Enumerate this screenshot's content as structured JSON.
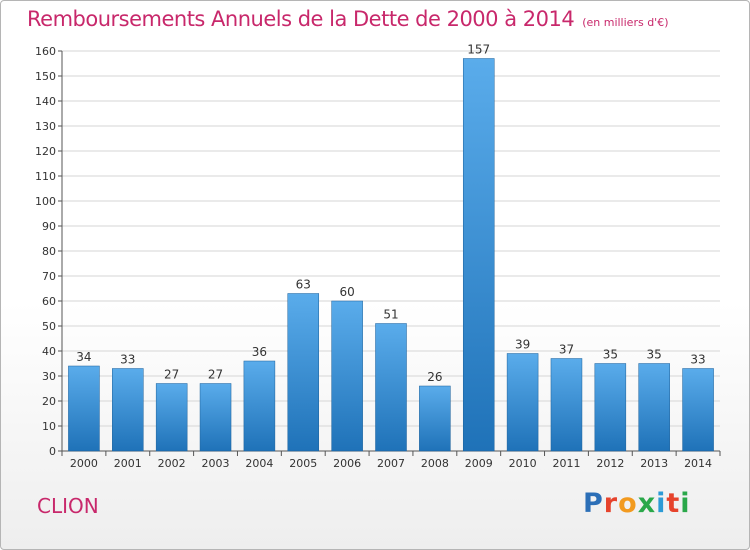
{
  "header": {
    "title": "Remboursements Annuels de la Dette de 2000 à 2014",
    "unit_note": "(en milliers d'€)"
  },
  "footer": {
    "place_name": "CLION",
    "logo_text": "Proxiti"
  },
  "colors": {
    "title": "#c8286b",
    "bar_top": "#5aaceb",
    "bar_bottom": "#1f72b8",
    "grid": "#d6d6d6"
  },
  "chart_data": {
    "type": "bar",
    "categories": [
      "2000",
      "2001",
      "2002",
      "2003",
      "2004",
      "2005",
      "2006",
      "2007",
      "2008",
      "2009",
      "2010",
      "2011",
      "2012",
      "2013",
      "2014"
    ],
    "values": [
      34,
      33,
      27,
      27,
      36,
      63,
      60,
      51,
      26,
      157,
      39,
      37,
      35,
      35,
      33
    ],
    "title": "Remboursements Annuels de la Dette de 2000 à 2014",
    "xlabel": "",
    "ylabel": "",
    "ylim": [
      0,
      160
    ],
    "yticks": [
      0,
      10,
      20,
      30,
      40,
      50,
      60,
      70,
      80,
      90,
      100,
      110,
      120,
      130,
      140,
      150,
      160
    ],
    "grid": true,
    "data_labels": true
  }
}
